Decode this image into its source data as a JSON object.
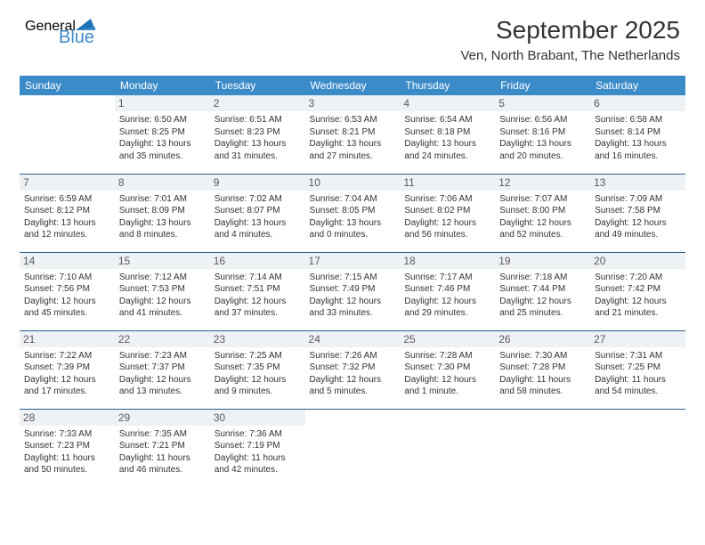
{
  "logo": {
    "general": "General",
    "blue": "Blue"
  },
  "header": {
    "title": "September 2025",
    "location": "Ven, North Brabant, The Netherlands"
  },
  "colors": {
    "header_bg": "#3b8bc9",
    "header_fg": "#ffffff",
    "daynum_bg": "#eef2f5",
    "daynum_fg": "#5a5a5a",
    "row_divider": "#2b5f87",
    "page_bg": "#ffffff",
    "text": "#333333"
  },
  "typography": {
    "title_fontsize": 28,
    "location_fontsize": 15,
    "dayhead_fontsize": 12,
    "daynum_fontsize": 12,
    "cell_fontsize": 10
  },
  "days": [
    "Sunday",
    "Monday",
    "Tuesday",
    "Wednesday",
    "Thursday",
    "Friday",
    "Saturday"
  ],
  "weeks": [
    [
      null,
      {
        "n": "1",
        "sr": "Sunrise: 6:50 AM",
        "ss": "Sunset: 8:25 PM",
        "d1": "Daylight: 13 hours",
        "d2": "and 35 minutes."
      },
      {
        "n": "2",
        "sr": "Sunrise: 6:51 AM",
        "ss": "Sunset: 8:23 PM",
        "d1": "Daylight: 13 hours",
        "d2": "and 31 minutes."
      },
      {
        "n": "3",
        "sr": "Sunrise: 6:53 AM",
        "ss": "Sunset: 8:21 PM",
        "d1": "Daylight: 13 hours",
        "d2": "and 27 minutes."
      },
      {
        "n": "4",
        "sr": "Sunrise: 6:54 AM",
        "ss": "Sunset: 8:18 PM",
        "d1": "Daylight: 13 hours",
        "d2": "and 24 minutes."
      },
      {
        "n": "5",
        "sr": "Sunrise: 6:56 AM",
        "ss": "Sunset: 8:16 PM",
        "d1": "Daylight: 13 hours",
        "d2": "and 20 minutes."
      },
      {
        "n": "6",
        "sr": "Sunrise: 6:58 AM",
        "ss": "Sunset: 8:14 PM",
        "d1": "Daylight: 13 hours",
        "d2": "and 16 minutes."
      }
    ],
    [
      {
        "n": "7",
        "sr": "Sunrise: 6:59 AM",
        "ss": "Sunset: 8:12 PM",
        "d1": "Daylight: 13 hours",
        "d2": "and 12 minutes."
      },
      {
        "n": "8",
        "sr": "Sunrise: 7:01 AM",
        "ss": "Sunset: 8:09 PM",
        "d1": "Daylight: 13 hours",
        "d2": "and 8 minutes."
      },
      {
        "n": "9",
        "sr": "Sunrise: 7:02 AM",
        "ss": "Sunset: 8:07 PM",
        "d1": "Daylight: 13 hours",
        "d2": "and 4 minutes."
      },
      {
        "n": "10",
        "sr": "Sunrise: 7:04 AM",
        "ss": "Sunset: 8:05 PM",
        "d1": "Daylight: 13 hours",
        "d2": "and 0 minutes."
      },
      {
        "n": "11",
        "sr": "Sunrise: 7:06 AM",
        "ss": "Sunset: 8:02 PM",
        "d1": "Daylight: 12 hours",
        "d2": "and 56 minutes."
      },
      {
        "n": "12",
        "sr": "Sunrise: 7:07 AM",
        "ss": "Sunset: 8:00 PM",
        "d1": "Daylight: 12 hours",
        "d2": "and 52 minutes."
      },
      {
        "n": "13",
        "sr": "Sunrise: 7:09 AM",
        "ss": "Sunset: 7:58 PM",
        "d1": "Daylight: 12 hours",
        "d2": "and 49 minutes."
      }
    ],
    [
      {
        "n": "14",
        "sr": "Sunrise: 7:10 AM",
        "ss": "Sunset: 7:56 PM",
        "d1": "Daylight: 12 hours",
        "d2": "and 45 minutes."
      },
      {
        "n": "15",
        "sr": "Sunrise: 7:12 AM",
        "ss": "Sunset: 7:53 PM",
        "d1": "Daylight: 12 hours",
        "d2": "and 41 minutes."
      },
      {
        "n": "16",
        "sr": "Sunrise: 7:14 AM",
        "ss": "Sunset: 7:51 PM",
        "d1": "Daylight: 12 hours",
        "d2": "and 37 minutes."
      },
      {
        "n": "17",
        "sr": "Sunrise: 7:15 AM",
        "ss": "Sunset: 7:49 PM",
        "d1": "Daylight: 12 hours",
        "d2": "and 33 minutes."
      },
      {
        "n": "18",
        "sr": "Sunrise: 7:17 AM",
        "ss": "Sunset: 7:46 PM",
        "d1": "Daylight: 12 hours",
        "d2": "and 29 minutes."
      },
      {
        "n": "19",
        "sr": "Sunrise: 7:18 AM",
        "ss": "Sunset: 7:44 PM",
        "d1": "Daylight: 12 hours",
        "d2": "and 25 minutes."
      },
      {
        "n": "20",
        "sr": "Sunrise: 7:20 AM",
        "ss": "Sunset: 7:42 PM",
        "d1": "Daylight: 12 hours",
        "d2": "and 21 minutes."
      }
    ],
    [
      {
        "n": "21",
        "sr": "Sunrise: 7:22 AM",
        "ss": "Sunset: 7:39 PM",
        "d1": "Daylight: 12 hours",
        "d2": "and 17 minutes."
      },
      {
        "n": "22",
        "sr": "Sunrise: 7:23 AM",
        "ss": "Sunset: 7:37 PM",
        "d1": "Daylight: 12 hours",
        "d2": "and 13 minutes."
      },
      {
        "n": "23",
        "sr": "Sunrise: 7:25 AM",
        "ss": "Sunset: 7:35 PM",
        "d1": "Daylight: 12 hours",
        "d2": "and 9 minutes."
      },
      {
        "n": "24",
        "sr": "Sunrise: 7:26 AM",
        "ss": "Sunset: 7:32 PM",
        "d1": "Daylight: 12 hours",
        "d2": "and 5 minutes."
      },
      {
        "n": "25",
        "sr": "Sunrise: 7:28 AM",
        "ss": "Sunset: 7:30 PM",
        "d1": "Daylight: 12 hours",
        "d2": "and 1 minute."
      },
      {
        "n": "26",
        "sr": "Sunrise: 7:30 AM",
        "ss": "Sunset: 7:28 PM",
        "d1": "Daylight: 11 hours",
        "d2": "and 58 minutes."
      },
      {
        "n": "27",
        "sr": "Sunrise: 7:31 AM",
        "ss": "Sunset: 7:25 PM",
        "d1": "Daylight: 11 hours",
        "d2": "and 54 minutes."
      }
    ],
    [
      {
        "n": "28",
        "sr": "Sunrise: 7:33 AM",
        "ss": "Sunset: 7:23 PM",
        "d1": "Daylight: 11 hours",
        "d2": "and 50 minutes."
      },
      {
        "n": "29",
        "sr": "Sunrise: 7:35 AM",
        "ss": "Sunset: 7:21 PM",
        "d1": "Daylight: 11 hours",
        "d2": "and 46 minutes."
      },
      {
        "n": "30",
        "sr": "Sunrise: 7:36 AM",
        "ss": "Sunset: 7:19 PM",
        "d1": "Daylight: 11 hours",
        "d2": "and 42 minutes."
      },
      null,
      null,
      null,
      null
    ]
  ]
}
